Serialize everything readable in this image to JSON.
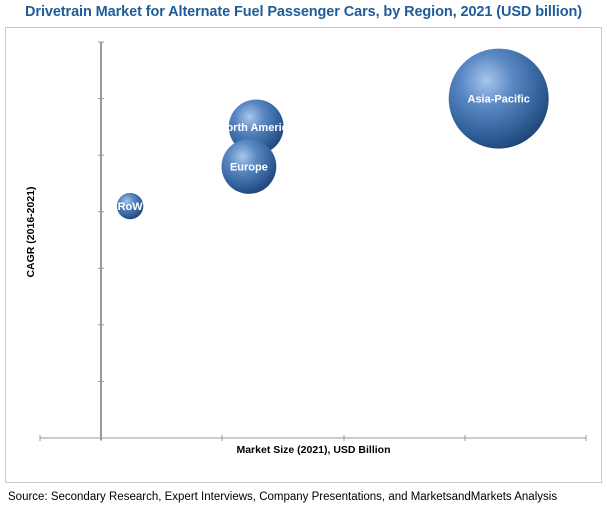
{
  "chart_data": {
    "type": "bubble",
    "title": "Drivetrain Market for Alternate Fuel Passenger Cars, by Region, 2021 (USD billion)",
    "xlabel": "Market Size (2021), USD Billion",
    "ylabel": "CAGR  (2016-2021)",
    "grid": false,
    "series": [
      {
        "label": "Asia-Pacific",
        "x": 8.2,
        "y": 6.0,
        "size": 1.0
      },
      {
        "label": "North America",
        "x": 3.2,
        "y": 5.5,
        "size": 0.3
      },
      {
        "label": "Europe",
        "x": 3.05,
        "y": 4.8,
        "size": 0.3
      },
      {
        "label": "RoW",
        "x": 0.6,
        "y": 4.1,
        "size": 0.07
      }
    ]
  },
  "source": "Source: Secondary Research, Expert Interviews, Company Presentations, and MarketsandMarkets Analysis",
  "colors": {
    "title": "#1f5c99",
    "bubble_light": "#8fb4e0",
    "bubble_mid": "#3c6fae",
    "bubble_dark": "#1d3f6e"
  }
}
